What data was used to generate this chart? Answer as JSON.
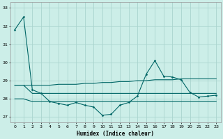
{
  "xlabel": "Humidex (Indice chaleur)",
  "background_color": "#cceee8",
  "grid_color": "#aad4ce",
  "line_color": "#006666",
  "ylim": [
    26.7,
    33.3
  ],
  "xlim": [
    -0.5,
    23.5
  ],
  "yticks": [
    27,
    28,
    29,
    30,
    31,
    32,
    33
  ],
  "xticks": [
    0,
    1,
    2,
    3,
    4,
    5,
    6,
    7,
    8,
    9,
    10,
    11,
    12,
    13,
    14,
    15,
    16,
    17,
    18,
    19,
    20,
    21,
    22,
    23
  ],
  "line1_x": [
    0,
    1,
    2,
    3,
    4,
    5,
    6,
    7,
    8,
    9,
    10,
    11,
    12,
    13,
    14,
    15,
    16,
    17,
    18,
    19,
    20,
    21,
    22,
    23
  ],
  "line1_y": [
    31.8,
    32.5,
    28.5,
    28.3,
    27.85,
    27.75,
    27.65,
    27.8,
    27.65,
    27.55,
    27.1,
    27.15,
    27.65,
    27.8,
    28.15,
    29.35,
    30.1,
    29.25,
    29.2,
    29.05,
    28.35,
    28.1,
    28.15,
    28.2
  ],
  "line2_x": [
    0,
    1,
    2,
    3,
    4,
    5,
    6,
    7,
    8,
    9,
    10,
    11,
    12,
    13,
    14,
    15,
    16,
    17,
    18,
    19,
    20,
    21,
    22,
    23
  ],
  "line2_y": [
    28.75,
    28.75,
    28.75,
    28.75,
    28.75,
    28.8,
    28.8,
    28.8,
    28.85,
    28.85,
    28.9,
    28.9,
    28.95,
    28.95,
    29.0,
    29.0,
    29.05,
    29.05,
    29.05,
    29.1,
    29.1,
    29.1,
    29.1,
    29.1
  ],
  "line3_x": [
    0,
    1,
    2,
    3,
    4,
    5,
    6,
    7,
    8,
    9,
    10,
    11,
    12,
    13,
    14,
    15,
    16,
    17,
    18,
    19,
    20,
    21,
    22,
    23
  ],
  "line3_y": [
    28.75,
    28.75,
    28.3,
    28.3,
    28.3,
    28.3,
    28.3,
    28.3,
    28.3,
    28.3,
    28.3,
    28.3,
    28.3,
    28.3,
    28.3,
    28.3,
    28.3,
    28.3,
    28.3,
    28.3,
    28.3,
    28.3,
    28.3,
    28.3
  ],
  "line4_x": [
    0,
    1,
    2,
    3,
    4,
    5,
    6,
    7,
    8,
    9,
    10,
    11,
    12,
    13,
    14,
    15,
    16,
    17,
    18,
    19,
    20,
    21,
    22,
    23
  ],
  "line4_y": [
    28.0,
    28.0,
    27.85,
    27.85,
    27.85,
    27.85,
    27.85,
    27.85,
    27.85,
    27.85,
    27.85,
    27.85,
    27.85,
    27.85,
    27.85,
    27.85,
    27.85,
    27.85,
    27.85,
    27.85,
    27.85,
    27.85,
    27.85,
    27.85
  ]
}
